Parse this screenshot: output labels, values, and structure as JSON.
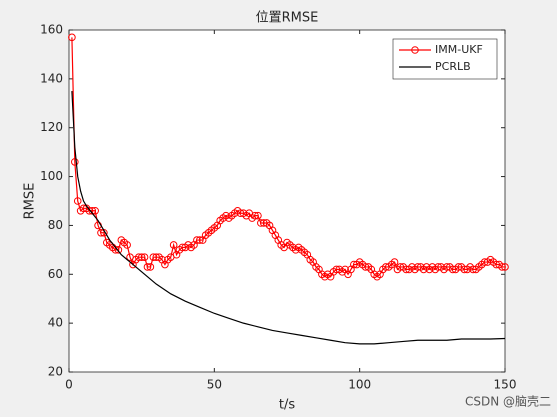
{
  "chart_data": {
    "type": "line",
    "title": "位置RMSE",
    "x_label": "t/s",
    "y_label": "RMSE",
    "xlim": [
      0,
      150
    ],
    "xticks": [
      0,
      50,
      100,
      150
    ],
    "ylim": [
      20,
      160
    ],
    "yticks": [
      20,
      40,
      60,
      80,
      100,
      120,
      140,
      160
    ],
    "legend": "top-right",
    "grid": false,
    "series": [
      {
        "name": "IMM-UKF",
        "color": "#ff0000",
        "marker": "o",
        "x": [
          1,
          2,
          3,
          4,
          5,
          6,
          7,
          8,
          9,
          10,
          11,
          12,
          13,
          14,
          15,
          16,
          17,
          18,
          19,
          20,
          21,
          22,
          23,
          24,
          25,
          26,
          27,
          28,
          29,
          30,
          31,
          32,
          33,
          34,
          35,
          36,
          37,
          38,
          39,
          40,
          41,
          42,
          43,
          44,
          45,
          46,
          47,
          48,
          49,
          50,
          51,
          52,
          53,
          54,
          55,
          56,
          57,
          58,
          59,
          60,
          61,
          62,
          63,
          64,
          65,
          66,
          67,
          68,
          69,
          70,
          71,
          72,
          73,
          74,
          75,
          76,
          77,
          78,
          79,
          80,
          81,
          82,
          83,
          84,
          85,
          86,
          87,
          88,
          89,
          90,
          91,
          92,
          93,
          94,
          95,
          96,
          97,
          98,
          99,
          100,
          101,
          102,
          103,
          104,
          105,
          106,
          107,
          108,
          109,
          110,
          111,
          112,
          113,
          114,
          115,
          116,
          117,
          118,
          119,
          120,
          121,
          122,
          123,
          124,
          125,
          126,
          127,
          128,
          129,
          130,
          131,
          132,
          133,
          134,
          135,
          136,
          137,
          138,
          139,
          140,
          141,
          142,
          143,
          144,
          145,
          146,
          147,
          148,
          149,
          150
        ],
        "values": [
          157,
          106,
          90,
          86,
          87,
          87,
          86,
          86,
          86,
          80,
          77,
          77,
          73,
          72,
          71,
          70,
          70,
          74,
          73,
          72,
          67,
          64,
          66,
          67,
          67,
          67,
          63,
          63,
          67,
          67,
          67,
          66,
          64,
          66,
          67,
          72,
          68,
          70,
          71,
          71,
          72,
          71,
          72,
          74,
          74,
          74,
          76,
          77,
          78,
          79,
          80,
          82,
          83,
          84,
          83,
          84,
          85,
          86,
          85,
          85,
          84,
          85,
          83,
          84,
          84,
          81,
          81,
          81,
          80,
          78,
          76,
          74,
          72,
          71,
          73,
          72,
          71,
          70,
          71,
          70,
          69,
          68,
          66,
          65,
          63,
          62,
          60,
          59,
          60,
          59,
          61,
          62,
          62,
          61,
          62,
          60,
          62,
          64,
          64,
          65,
          64,
          63,
          63,
          62,
          60,
          59,
          60,
          62,
          63,
          63,
          64,
          65,
          62,
          63,
          63,
          62,
          62,
          63,
          62,
          63,
          63,
          62,
          63,
          62,
          63,
          62,
          63,
          63,
          62,
          63,
          63,
          62,
          62,
          63,
          63,
          62,
          62,
          63,
          62,
          62,
          63,
          64,
          65,
          65,
          66,
          65,
          64,
          64,
          63,
          63
        ]
      },
      {
        "name": "PCRLB",
        "color": "#000000",
        "x": [
          1,
          2,
          3,
          4,
          5,
          6,
          8,
          10,
          12,
          14,
          16,
          18,
          20,
          25,
          30,
          35,
          40,
          45,
          50,
          55,
          60,
          65,
          70,
          75,
          80,
          85,
          90,
          95,
          100,
          105,
          110,
          115,
          120,
          125,
          130,
          135,
          140,
          145,
          150
        ],
        "values": [
          135,
          112,
          100,
          94,
          90,
          88,
          85,
          82,
          78,
          74,
          71,
          68,
          66,
          61,
          56,
          52,
          49,
          46.5,
          44,
          42,
          40,
          38.5,
          37,
          36,
          35,
          34,
          33,
          32,
          31.5,
          31.5,
          32,
          32.5,
          33,
          33,
          33,
          33.5,
          33.5,
          33.5,
          33.7
        ]
      }
    ],
    "watermark": "CSDN @脑壳二"
  }
}
